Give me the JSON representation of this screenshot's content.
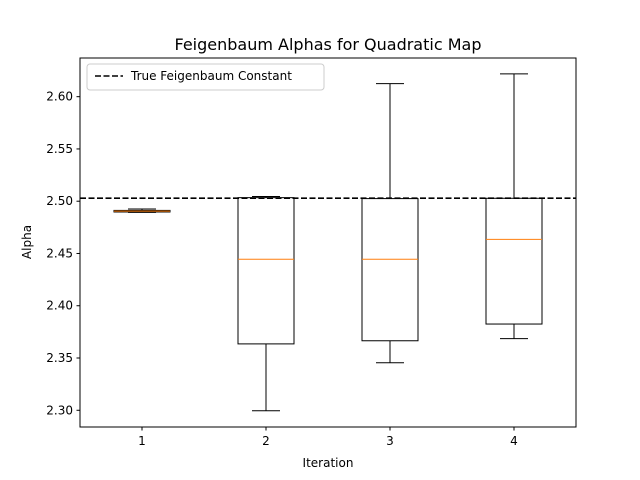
{
  "chart_data": {
    "type": "boxplot",
    "title": "Feigenbaum Alphas for Quadratic Map",
    "xlabel": "Iteration",
    "ylabel": "Alpha",
    "categories": [
      "1",
      "2",
      "3",
      "4"
    ],
    "ylim": [
      2.284,
      2.637
    ],
    "yticks": [
      2.3,
      2.35,
      2.4,
      2.45,
      2.5,
      2.55,
      2.6
    ],
    "ytick_labels": [
      "2.30",
      "2.35",
      "2.40",
      "2.45",
      "2.50",
      "2.55",
      "2.60"
    ],
    "boxes": [
      {
        "label": "1",
        "whisker_low": 2.4893,
        "q1": 2.4897,
        "median": 2.4905,
        "q3": 2.4912,
        "whisker_high": 2.4925
      },
      {
        "label": "2",
        "whisker_low": 2.2995,
        "q1": 2.3635,
        "median": 2.4445,
        "q3": 2.5034,
        "whisker_high": 2.5045
      },
      {
        "label": "3",
        "whisker_low": 2.3455,
        "q1": 2.3665,
        "median": 2.4445,
        "q3": 2.5025,
        "whisker_high": 2.6125
      },
      {
        "label": "4",
        "whisker_low": 2.3685,
        "q1": 2.3825,
        "median": 2.4635,
        "q3": 2.5028,
        "whisker_high": 2.6218
      }
    ],
    "reference_line": {
      "name": "True Feigenbaum Constant",
      "value": 2.5029,
      "style": "dashed",
      "color": "#000000"
    },
    "legend": {
      "position": "top-left",
      "entries": [
        "True Feigenbaum Constant"
      ]
    },
    "grid": false,
    "colors": {
      "box": "#000000",
      "median": "#ff7f0e",
      "reference": "#000000"
    }
  }
}
